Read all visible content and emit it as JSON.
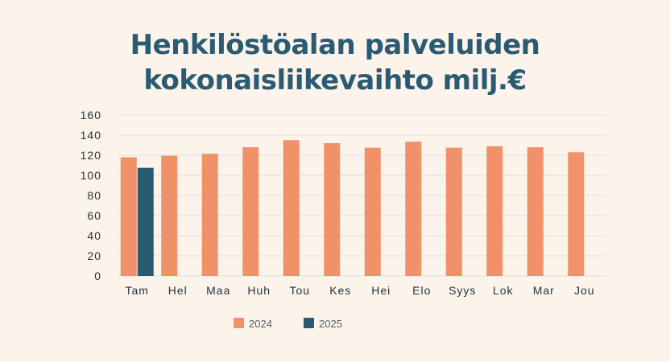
{
  "title_lines": [
    "Henkilöstöalan palveluiden",
    "kokonaisliikevaihto milj.€"
  ],
  "colors": {
    "s2024": "#f0916a",
    "s2025": "#2b5a73",
    "grid": "#e6e8e6",
    "title": "#2b5a73"
  },
  "chart_data": {
    "type": "bar",
    "title": "Henkilöstöalan palveluiden kokonaisliikevaihto milj.€",
    "xlabel": "",
    "ylabel": "",
    "ylim": [
      0,
      160
    ],
    "yticks": [
      0,
      20,
      40,
      60,
      80,
      100,
      120,
      140,
      160
    ],
    "grid": true,
    "legend": "bottom",
    "categories": [
      "Tam",
      "Hel",
      "Maa",
      "Huh",
      "Tou",
      "Kes",
      "Hei",
      "Elo",
      "Syys",
      "Lok",
      "Mar",
      "Jou"
    ],
    "series": [
      {
        "name": "2024",
        "values": [
          118,
          119.5,
          121.5,
          128,
          135,
          132,
          127.5,
          133.5,
          127.5,
          129,
          128,
          123
        ]
      },
      {
        "name": "2025",
        "values": [
          107.5,
          null,
          null,
          null,
          null,
          null,
          null,
          null,
          null,
          null,
          null,
          null
        ]
      }
    ]
  }
}
